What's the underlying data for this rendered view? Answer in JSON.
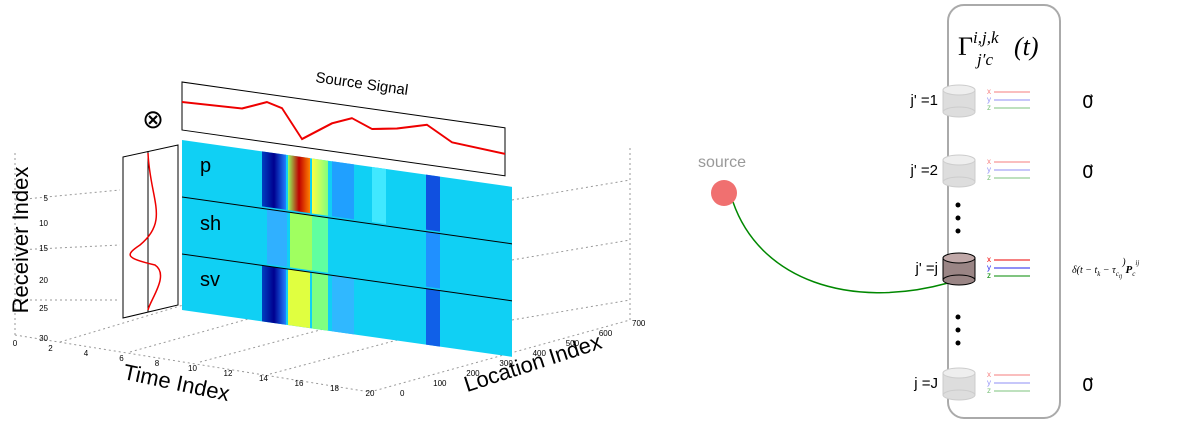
{
  "left_panel": {
    "convolution_symbol": "⊗",
    "source_signal_title": "Source Signal",
    "wave_labels": [
      "p",
      "sh",
      "sv"
    ],
    "axes": {
      "receiver": {
        "label": "Receiver Index",
        "ticks": [
          "5",
          "10",
          "15",
          "20",
          "25",
          "30"
        ]
      },
      "time": {
        "label": "Time Index",
        "ticks": [
          "0",
          "2",
          "4",
          "6",
          "8",
          "10",
          "12",
          "14",
          "16",
          "18",
          "20"
        ]
      },
      "location": {
        "label": "Location Index",
        "ticks": [
          "0",
          "100",
          "200",
          "300",
          "400",
          "500",
          "600",
          "700"
        ]
      }
    }
  },
  "right_panel": {
    "source_label": "source",
    "gamma": {
      "symbol": "Γ",
      "superscript": "i,j,k",
      "subscript": "j′c",
      "argument": "(t)"
    },
    "receivers": [
      {
        "label": "j' =1",
        "components": [
          "x",
          "y",
          "z"
        ],
        "output": "0⃗"
      },
      {
        "label": "j' =2",
        "components": [
          "x",
          "y",
          "z"
        ],
        "output": "0⃗"
      },
      {
        "label": "j' =j",
        "components": [
          "x",
          "y",
          "z"
        ],
        "output_parts": [
          "δ(t − t",
          "k",
          " − τ",
          "c",
          "ij",
          ")",
          "P",
          "c",
          "ij"
        ]
      },
      {
        "label": "j =J",
        "components": [
          "x",
          "y",
          "z"
        ],
        "output": "0⃗"
      }
    ]
  }
}
